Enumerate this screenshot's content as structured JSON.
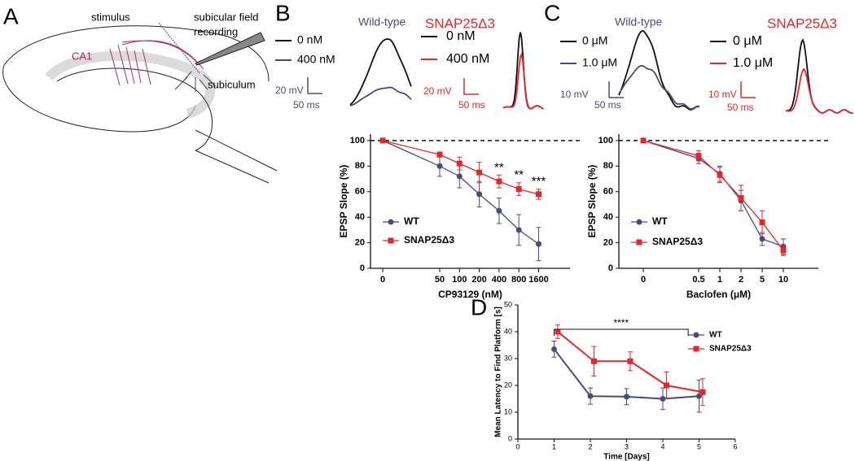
{
  "panel_labels": [
    "A",
    "B",
    "C",
    "D"
  ],
  "schematic": {
    "stimulus": "stimulus",
    "recording": [
      "subicular field",
      "recording"
    ],
    "ca1": "CA1",
    "subiculum": "subiculum"
  },
  "traces": [
    {
      "wt_title": "Wild-type",
      "mut_title": "SNAP25Δ3",
      "wt_legend": [
        "0 nM",
        "400 nM"
      ],
      "mut_legend": [
        "0 nM",
        "400 nM"
      ],
      "wt_scale": [
        "20 mV",
        "50 ms"
      ],
      "mut_scale": [
        "20 mV",
        "50 ms"
      ]
    },
    {
      "wt_title": "Wild-type",
      "mut_title": "SNAP25Δ3",
      "wt_legend": [
        "0 μM",
        "1.0 μM"
      ],
      "mut_legend": [
        "0 μM",
        "1.0 μM"
      ],
      "wt_scale": [
        "10 mV",
        "50 ms"
      ],
      "mut_scale": [
        "10 mV",
        "50 ms"
      ]
    }
  ],
  "chart_data": [
    {
      "type": "line",
      "x_label": "CP93129 (nM)",
      "y_label": "EPSP Slope (%)",
      "categories": [
        "0",
        "50",
        "100",
        "200",
        "400",
        "800",
        "1600"
      ],
      "series": [
        {
          "name": "WT",
          "color": "#4b4a7c",
          "marker": "circle",
          "values": [
            100,
            80,
            72,
            58,
            45,
            30,
            19
          ],
          "errors": [
            0,
            8,
            9,
            10,
            10,
            12,
            13
          ]
        },
        {
          "name": "SNAP25Δ3",
          "color": "#e8262a",
          "marker": "square",
          "values": [
            100,
            89,
            82,
            75,
            68,
            62,
            58
          ],
          "errors": [
            0,
            2,
            5,
            8,
            5,
            5,
            4
          ]
        }
      ],
      "ylim": [
        0,
        105
      ],
      "yticks": [
        0,
        20,
        40,
        60,
        80,
        100
      ],
      "reference_line": 100,
      "annotations": [
        {
          "text": "**",
          "at": "400"
        },
        {
          "text": "**",
          "at": "800"
        },
        {
          "text": "***",
          "at": "1600"
        }
      ]
    },
    {
      "type": "line",
      "x_label": "Baclofen (μM)",
      "y_label": "EPSP Slope (%)",
      "categories": [
        "0",
        "0.5",
        "1",
        "2",
        "5",
        "10"
      ],
      "series": [
        {
          "name": "WT",
          "color": "#4b4a7c",
          "marker": "circle",
          "values": [
            100,
            86,
            74,
            53,
            23,
            17
          ],
          "errors": [
            0,
            4,
            6,
            8,
            5,
            6
          ]
        },
        {
          "name": "SNAP25Δ3",
          "color": "#e8262a",
          "marker": "square",
          "values": [
            100,
            88,
            73,
            55,
            36,
            14
          ],
          "errors": [
            0,
            4,
            6,
            10,
            9,
            4
          ]
        }
      ],
      "ylim": [
        0,
        105
      ],
      "yticks": [
        0,
        20,
        40,
        60,
        80,
        100
      ],
      "reference_line": 100,
      "annotations": []
    },
    {
      "type": "xyline",
      "x_label": "Time [Days]",
      "y_label": "Mean Latency to Find Platform [s]",
      "series": [
        {
          "name": "WT",
          "color": "#4b4a7c",
          "marker": "circle",
          "x": [
            1,
            2,
            3,
            4,
            5
          ],
          "values": [
            33.5,
            16,
            15.8,
            15,
            16
          ],
          "errors": [
            3,
            3,
            3,
            4,
            6
          ]
        },
        {
          "name": "SNAP25Δ3",
          "color": "#e8262a",
          "marker": "square",
          "x": [
            1.1,
            2.1,
            3.1,
            4.1,
            5.1
          ],
          "values": [
            40,
            29,
            29,
            20,
            17.5
          ],
          "errors": [
            2.5,
            5.5,
            3.5,
            5,
            5
          ]
        }
      ],
      "xlim": [
        0,
        6
      ],
      "xticks": [
        0,
        1,
        2,
        3,
        4,
        5,
        6
      ],
      "ylim": [
        0,
        50
      ],
      "yticks": [
        0,
        10,
        20,
        30,
        40,
        50
      ],
      "bracket": {
        "text": "****",
        "x_range": [
          1,
          4.7
        ]
      }
    }
  ]
}
